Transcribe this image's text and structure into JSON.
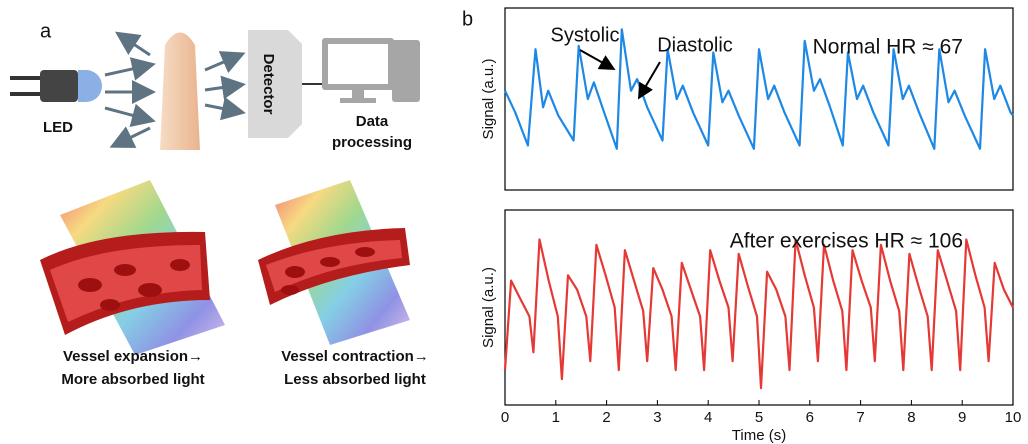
{
  "panel_labels": [
    "a",
    "b"
  ],
  "diagram": {
    "led": "LED",
    "detector": "Detector",
    "data_processing": [
      "Data",
      "processing"
    ],
    "captions": [
      [
        "Vessel expansion→",
        "More absorbed light"
      ],
      [
        "Vessel contraction→",
        "Less absorbed light"
      ]
    ]
  },
  "chart_data": [
    {
      "type": "line",
      "ylabel": "Signal (a.u.)",
      "color": "#1e88e5",
      "annotations": [
        "Systolic",
        "Diastolic"
      ],
      "hr_label": "Normal HR ≈ 67",
      "xlim": [
        0,
        10
      ],
      "ylim": [
        0,
        1
      ],
      "x": [
        0,
        0.2,
        0.45,
        0.6,
        0.75,
        0.85,
        1.05,
        1.35,
        1.45,
        1.63,
        1.75,
        1.95,
        2.2,
        2.3,
        2.48,
        2.6,
        2.8,
        3.1,
        3.2,
        3.38,
        3.5,
        3.7,
        4.0,
        4.1,
        4.28,
        4.4,
        4.6,
        4.9,
        5.0,
        5.18,
        5.3,
        5.5,
        5.8,
        5.9,
        6.08,
        6.2,
        6.4,
        6.65,
        6.75,
        6.93,
        7.05,
        7.25,
        7.55,
        7.65,
        7.83,
        7.95,
        8.15,
        8.45,
        8.55,
        8.73,
        8.85,
        9.05,
        9.35,
        9.45,
        9.63,
        9.75,
        9.95,
        10
      ],
      "values": [
        0.55,
        0.42,
        0.22,
        0.8,
        0.45,
        0.55,
        0.4,
        0.25,
        0.82,
        0.5,
        0.6,
        0.42,
        0.2,
        0.92,
        0.55,
        0.62,
        0.45,
        0.25,
        0.8,
        0.5,
        0.58,
        0.42,
        0.22,
        0.78,
        0.48,
        0.55,
        0.4,
        0.2,
        0.8,
        0.5,
        0.58,
        0.42,
        0.22,
        0.85,
        0.55,
        0.62,
        0.45,
        0.22,
        0.78,
        0.5,
        0.58,
        0.42,
        0.22,
        0.8,
        0.5,
        0.58,
        0.42,
        0.2,
        0.8,
        0.48,
        0.55,
        0.4,
        0.2,
        0.8,
        0.5,
        0.58,
        0.42,
        0.4
      ]
    },
    {
      "type": "line",
      "xlabel": "Time (s)",
      "ylabel": "Signal (a.u.)",
      "color": "#e53935",
      "hr_label": "After exercises HR ≈ 106",
      "xlim": [
        0,
        10
      ],
      "ylim": [
        0,
        1
      ],
      "xticks": [
        0,
        1,
        2,
        3,
        4,
        5,
        6,
        7,
        8,
        9,
        10
      ],
      "x": [
        0,
        0.12,
        0.3,
        0.48,
        0.56,
        0.68,
        0.86,
        1.04,
        1.12,
        1.24,
        1.42,
        1.6,
        1.68,
        1.8,
        1.98,
        2.16,
        2.24,
        2.36,
        2.54,
        2.72,
        2.8,
        2.92,
        3.1,
        3.28,
        3.36,
        3.48,
        3.66,
        3.84,
        3.92,
        4.04,
        4.22,
        4.4,
        4.48,
        4.6,
        4.78,
        4.96,
        5.04,
        5.16,
        5.34,
        5.52,
        5.6,
        5.72,
        5.9,
        6.08,
        6.16,
        6.28,
        6.46,
        6.64,
        6.72,
        6.84,
        7.02,
        7.2,
        7.28,
        7.4,
        7.58,
        7.76,
        7.84,
        7.96,
        8.14,
        8.32,
        8.4,
        8.52,
        8.7,
        8.88,
        8.96,
        9.08,
        9.26,
        9.44,
        9.52,
        9.64,
        9.82,
        10
      ],
      "values": [
        0.15,
        0.65,
        0.55,
        0.45,
        0.25,
        0.88,
        0.65,
        0.45,
        0.1,
        0.68,
        0.6,
        0.45,
        0.2,
        0.85,
        0.68,
        0.5,
        0.15,
        0.82,
        0.65,
        0.48,
        0.2,
        0.72,
        0.6,
        0.45,
        0.15,
        0.75,
        0.6,
        0.45,
        0.15,
        0.82,
        0.65,
        0.5,
        0.2,
        0.8,
        0.62,
        0.45,
        0.05,
        0.7,
        0.6,
        0.45,
        0.15,
        0.88,
        0.68,
        0.5,
        0.2,
        0.85,
        0.65,
        0.48,
        0.15,
        0.82,
        0.65,
        0.5,
        0.2,
        0.85,
        0.65,
        0.48,
        0.15,
        0.8,
        0.62,
        0.45,
        0.15,
        0.82,
        0.65,
        0.48,
        0.15,
        0.88,
        0.68,
        0.5,
        0.2,
        0.75,
        0.6,
        0.5
      ]
    }
  ]
}
